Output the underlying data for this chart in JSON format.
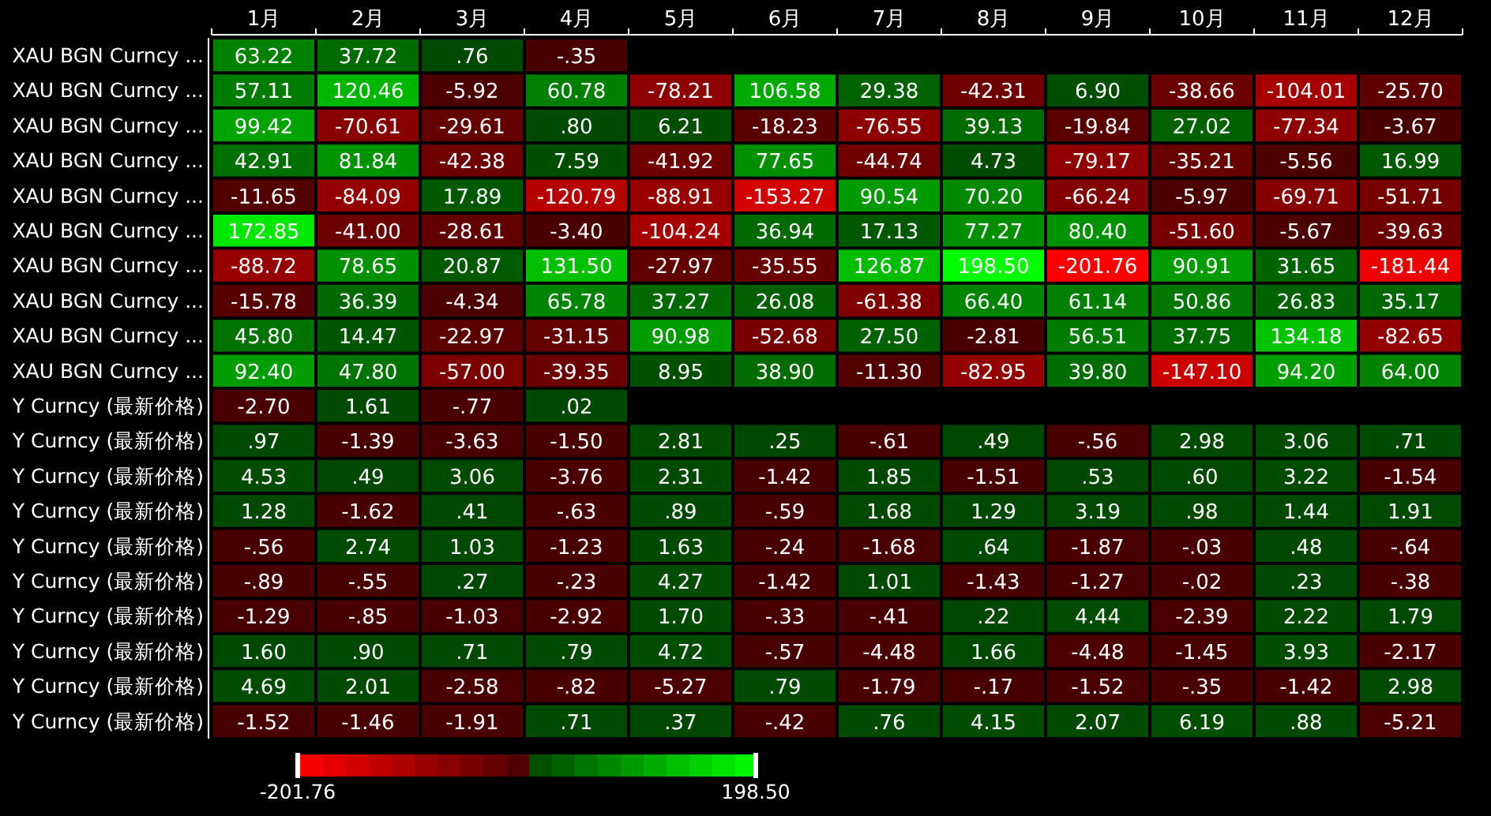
{
  "chart_data": {
    "type": "heatmap",
    "categories": [
      "1月",
      "2月",
      "3月",
      "4月",
      "5月",
      "6月",
      "7月",
      "8月",
      "9月",
      "10月",
      "11月",
      "12月"
    ],
    "y_categories": [
      "XAU BGN Curncy ...",
      "XAU BGN Curncy ...",
      "XAU BGN Curncy ...",
      "XAU BGN Curncy ...",
      "XAU BGN Curncy ...",
      "XAU BGN Curncy ...",
      "XAU BGN Curncy ...",
      "XAU BGN Curncy ...",
      "XAU BGN Curncy ...",
      "XAU BGN Curncy ...",
      "Y Curncy (最新价格)",
      "Y Curncy (最新价格)",
      "Y Curncy (最新价格)",
      "Y Curncy (最新价格)",
      "Y Curncy (最新价格)",
      "Y Curncy (最新价格)",
      "Y Curncy (最新价格)",
      "Y Curncy (最新价格)",
      "Y Curncy (最新价格)",
      "Y Curncy (最新价格)"
    ],
    "cells": [
      [
        63.22,
        37.72,
        0.76,
        -0.35,
        null,
        null,
        null,
        null,
        null,
        null,
        null,
        null
      ],
      [
        57.11,
        120.46,
        -5.92,
        60.78,
        -78.21,
        106.58,
        29.38,
        -42.31,
        6.9,
        -38.66,
        -104.01,
        -25.7
      ],
      [
        99.42,
        -70.61,
        -29.61,
        0.8,
        6.21,
        -18.23,
        -76.55,
        39.13,
        -19.84,
        27.02,
        -77.34,
        -3.67
      ],
      [
        42.91,
        81.84,
        -42.38,
        7.59,
        -41.92,
        77.65,
        -44.74,
        4.73,
        -79.17,
        -35.21,
        -5.56,
        16.99
      ],
      [
        -11.65,
        -84.09,
        17.89,
        -120.79,
        -88.91,
        -153.27,
        90.54,
        70.2,
        -66.24,
        -5.97,
        -69.71,
        -51.71
      ],
      [
        172.85,
        -41.0,
        -28.61,
        -3.4,
        -104.24,
        36.94,
        17.13,
        77.27,
        80.4,
        -51.6,
        -5.67,
        -39.63
      ],
      [
        -88.72,
        78.65,
        20.87,
        131.5,
        -27.97,
        -35.55,
        126.87,
        198.5,
        -201.76,
        90.91,
        31.65,
        -181.44
      ],
      [
        -15.78,
        36.39,
        -4.34,
        65.78,
        37.27,
        26.08,
        -61.38,
        66.4,
        61.14,
        50.86,
        26.83,
        35.17
      ],
      [
        45.8,
        14.47,
        -22.97,
        -31.15,
        90.98,
        -52.68,
        27.5,
        -2.81,
        56.51,
        37.75,
        134.18,
        -82.65
      ],
      [
        92.4,
        47.8,
        -57.0,
        -39.35,
        8.95,
        38.9,
        -11.3,
        -82.95,
        39.8,
        -147.1,
        94.2,
        64.0
      ],
      [
        -2.7,
        1.61,
        -0.77,
        0.02,
        null,
        null,
        null,
        null,
        null,
        null,
        null,
        null
      ],
      [
        0.97,
        -1.39,
        -3.63,
        -1.5,
        2.81,
        0.25,
        -0.61,
        0.49,
        -0.56,
        2.98,
        3.06,
        0.71
      ],
      [
        4.53,
        0.49,
        3.06,
        -3.76,
        2.31,
        -1.42,
        1.85,
        -1.51,
        0.53,
        0.6,
        3.22,
        -1.54
      ],
      [
        1.28,
        -1.62,
        0.41,
        -0.63,
        0.89,
        -0.59,
        1.68,
        1.29,
        3.19,
        0.98,
        1.44,
        1.91
      ],
      [
        -0.56,
        2.74,
        1.03,
        -1.23,
        1.63,
        -0.24,
        -1.68,
        0.64,
        -1.87,
        -0.03,
        0.48,
        -0.64
      ],
      [
        -0.89,
        -0.55,
        0.27,
        -0.23,
        4.27,
        -1.42,
        1.01,
        -1.43,
        -1.27,
        -0.02,
        0.23,
        -0.38
      ],
      [
        -1.29,
        -0.85,
        -1.03,
        -2.92,
        1.7,
        -0.33,
        -0.41,
        0.22,
        4.44,
        -2.39,
        2.22,
        1.79
      ],
      [
        1.6,
        0.9,
        0.71,
        0.79,
        4.72,
        -0.57,
        -4.48,
        1.66,
        -4.48,
        -1.45,
        3.93,
        -2.17
      ],
      [
        4.69,
        2.01,
        -2.58,
        -0.82,
        -5.27,
        0.79,
        -1.79,
        -0.17,
        -1.52,
        -0.35,
        -1.42,
        2.98
      ],
      [
        -1.52,
        -1.46,
        -1.91,
        0.71,
        0.37,
        -0.42,
        0.76,
        4.15,
        2.07,
        6.19,
        0.88,
        -5.21
      ]
    ],
    "cell_labels": [
      [
        "63.22",
        "37.72",
        ".76",
        "-.35",
        null,
        null,
        null,
        null,
        null,
        null,
        null,
        null
      ],
      [
        "57.11",
        "120.46",
        "-5.92",
        "60.78",
        "-78.21",
        "106.58",
        "29.38",
        "-42.31",
        "6.90",
        "-38.66",
        "-104.01",
        "-25.70"
      ],
      [
        "99.42",
        "-70.61",
        "-29.61",
        ".80",
        "6.21",
        "-18.23",
        "-76.55",
        "39.13",
        "-19.84",
        "27.02",
        "-77.34",
        "-3.67"
      ],
      [
        "42.91",
        "81.84",
        "-42.38",
        "7.59",
        "-41.92",
        "77.65",
        "-44.74",
        "4.73",
        "-79.17",
        "-35.21",
        "-5.56",
        "16.99"
      ],
      [
        "-11.65",
        "-84.09",
        "17.89",
        "-120.79",
        "-88.91",
        "-153.27",
        "90.54",
        "70.20",
        "-66.24",
        "-5.97",
        "-69.71",
        "-51.71"
      ],
      [
        "172.85",
        "-41.00",
        "-28.61",
        "-3.40",
        "-104.24",
        "36.94",
        "17.13",
        "77.27",
        "80.40",
        "-51.60",
        "-5.67",
        "-39.63"
      ],
      [
        "-88.72",
        "78.65",
        "20.87",
        "131.50",
        "-27.97",
        "-35.55",
        "126.87",
        "198.50",
        "-201.76",
        "90.91",
        "31.65",
        "-181.44"
      ],
      [
        "-15.78",
        "36.39",
        "-4.34",
        "65.78",
        "37.27",
        "26.08",
        "-61.38",
        "66.40",
        "61.14",
        "50.86",
        "26.83",
        "35.17"
      ],
      [
        "45.80",
        "14.47",
        "-22.97",
        "-31.15",
        "90.98",
        "-52.68",
        "27.50",
        "-2.81",
        "56.51",
        "37.75",
        "134.18",
        "-82.65"
      ],
      [
        "92.40",
        "47.80",
        "-57.00",
        "-39.35",
        "8.95",
        "38.90",
        "-11.30",
        "-82.95",
        "39.80",
        "-147.10",
        "94.20",
        "64.00"
      ],
      [
        "-2.70",
        "1.61",
        "-.77",
        ".02",
        null,
        null,
        null,
        null,
        null,
        null,
        null,
        null
      ],
      [
        ".97",
        "-1.39",
        "-3.63",
        "-1.50",
        "2.81",
        ".25",
        "-.61",
        ".49",
        "-.56",
        "2.98",
        "3.06",
        ".71"
      ],
      [
        "4.53",
        ".49",
        "3.06",
        "-3.76",
        "2.31",
        "-1.42",
        "1.85",
        "-1.51",
        ".53",
        ".60",
        "3.22",
        "-1.54"
      ],
      [
        "1.28",
        "-1.62",
        ".41",
        "-.63",
        ".89",
        "-.59",
        "1.68",
        "1.29",
        "3.19",
        ".98",
        "1.44",
        "1.91"
      ],
      [
        "-.56",
        "2.74",
        "1.03",
        "-1.23",
        "1.63",
        "-.24",
        "-1.68",
        ".64",
        "-1.87",
        "-.03",
        ".48",
        "-.64"
      ],
      [
        "-.89",
        "-.55",
        ".27",
        "-.23",
        "4.27",
        "-1.42",
        "1.01",
        "-1.43",
        "-1.27",
        "-.02",
        ".23",
        "-.38"
      ],
      [
        "-1.29",
        "-.85",
        "-1.03",
        "-2.92",
        "1.70",
        "-.33",
        "-.41",
        ".22",
        "4.44",
        "-2.39",
        "2.22",
        "1.79"
      ],
      [
        "1.60",
        ".90",
        ".71",
        ".79",
        "4.72",
        "-.57",
        "-4.48",
        "1.66",
        "-4.48",
        "-1.45",
        "3.93",
        "-2.17"
      ],
      [
        "4.69",
        "2.01",
        "-2.58",
        "-.82",
        "-5.27",
        ".79",
        "-1.79",
        "-.17",
        "-1.52",
        "-.35",
        "-1.42",
        "2.98"
      ],
      [
        "-1.52",
        "-1.46",
        "-1.91",
        ".71",
        ".37",
        "-.42",
        ".76",
        "4.15",
        "2.07",
        "6.19",
        ".88",
        "-5.21"
      ]
    ],
    "clim": [
      -201.76,
      198.5
    ],
    "cticks": [
      -201.76,
      {
        "value": 198.5,
        "label": "198.50"
      }
    ]
  }
}
